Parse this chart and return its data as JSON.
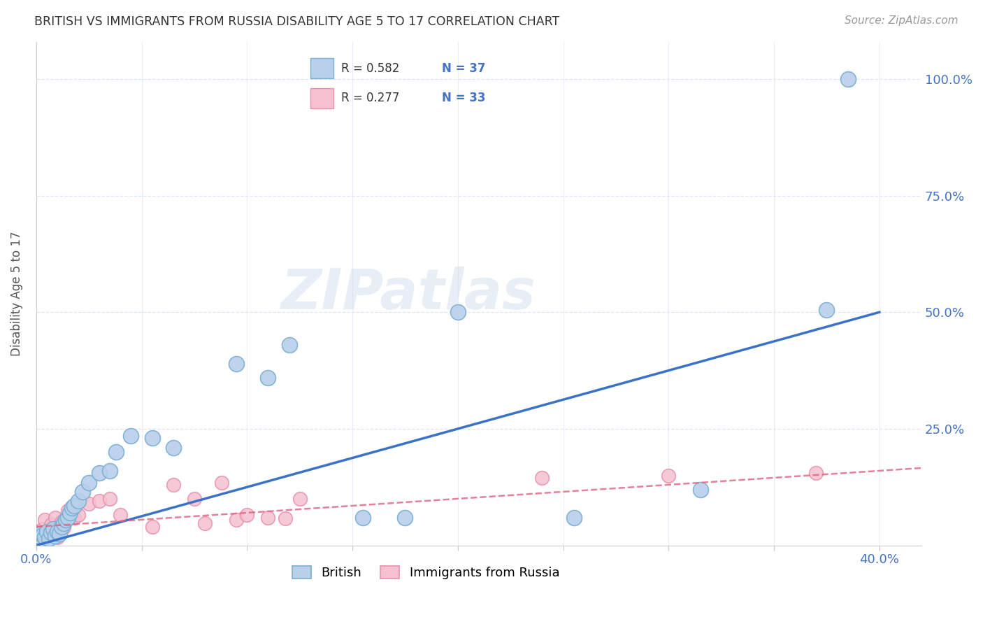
{
  "title": "BRITISH VS IMMIGRANTS FROM RUSSIA DISABILITY AGE 5 TO 17 CORRELATION CHART",
  "source": "Source: ZipAtlas.com",
  "ylabel": "Disability Age 5 to 17",
  "xlim": [
    0.0,
    0.42
  ],
  "ylim": [
    0.0,
    1.08
  ],
  "background_color": "#ffffff",
  "grid_color": "#dde5f5",
  "title_color": "#333333",
  "watermark": "ZIPatlas",
  "british_face_color": "#b8d0ea",
  "british_edge_color": "#7aafd4",
  "russia_face_color": "#f5c0d0",
  "russia_edge_color": "#e890aa",
  "trend_blue_color": "#3a72c8",
  "trend_pink_color": "#e06080",
  "tick_label_color": "#4472c4",
  "legend_R_color": "#333333",
  "legend_N_color": "#4472c4",
  "british_x": [
    0.001,
    0.002,
    0.003,
    0.004,
    0.005,
    0.006,
    0.007,
    0.008,
    0.009,
    0.01,
    0.011,
    0.012,
    0.013,
    0.014,
    0.015,
    0.016,
    0.017,
    0.018,
    0.02,
    0.022,
    0.025,
    0.03,
    0.035,
    0.038,
    0.045,
    0.055,
    0.065,
    0.095,
    0.11,
    0.12,
    0.155,
    0.175,
    0.2,
    0.255,
    0.315,
    0.375,
    0.385
  ],
  "british_y": [
    0.02,
    0.025,
    0.022,
    0.018,
    0.03,
    0.015,
    0.028,
    0.035,
    0.02,
    0.03,
    0.025,
    0.04,
    0.048,
    0.055,
    0.06,
    0.07,
    0.08,
    0.085,
    0.095,
    0.115,
    0.135,
    0.155,
    0.16,
    0.2,
    0.235,
    0.23,
    0.21,
    0.39,
    0.36,
    0.43,
    0.06,
    0.06,
    0.5,
    0.06,
    0.12,
    0.505,
    1.0
  ],
  "russia_x": [
    0.001,
    0.002,
    0.003,
    0.004,
    0.005,
    0.006,
    0.007,
    0.008,
    0.009,
    0.01,
    0.011,
    0.012,
    0.013,
    0.015,
    0.018,
    0.02,
    0.025,
    0.03,
    0.035,
    0.04,
    0.055,
    0.065,
    0.075,
    0.08,
    0.088,
    0.095,
    0.1,
    0.11,
    0.118,
    0.125,
    0.24,
    0.3,
    0.37
  ],
  "russia_y": [
    0.03,
    0.025,
    0.035,
    0.055,
    0.02,
    0.028,
    0.045,
    0.03,
    0.06,
    0.018,
    0.04,
    0.05,
    0.038,
    0.075,
    0.06,
    0.065,
    0.09,
    0.095,
    0.1,
    0.065,
    0.04,
    0.13,
    0.1,
    0.048,
    0.135,
    0.055,
    0.065,
    0.06,
    0.058,
    0.1,
    0.145,
    0.15,
    0.155
  ],
  "trend_blue_x0": 0.0,
  "trend_blue_y0": 0.0,
  "trend_blue_x1": 0.4,
  "trend_blue_y1": 0.5,
  "trend_pink_x0": 0.0,
  "trend_pink_y0": 0.04,
  "trend_pink_x1": 0.4,
  "trend_pink_y1": 0.16
}
